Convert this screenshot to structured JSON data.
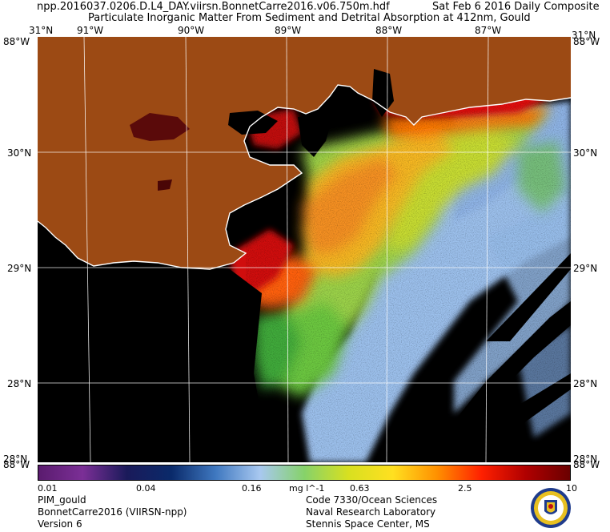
{
  "header": {
    "file_name": "npp.2016037.0206.D.L4_DAY.viirsn.BonnetCarre2016.v06.750m.hdf",
    "composite_label": "Sat Feb  6 2016 Daily Composite",
    "product_title": "Particulate Inorganic Matter From Sediment and Detrital Absorption at 412nm, Gould"
  },
  "map": {
    "top_latitude_left": "31°N",
    "top_latitude_right": "31°N",
    "bottom_latitude_left": "28°N",
    "bottom_latitude_right": "28°N",
    "corner_top_left": "88°W",
    "corner_top_right": "88°W",
    "corner_bottom_left": "88°W",
    "corner_bottom_right": "88°W",
    "longitude_labels": [
      "91°W",
      "90°W",
      "89°W",
      "88°W",
      "87°W"
    ],
    "latitude_labels": [
      "30°N",
      "29°N",
      "28°N"
    ],
    "colors": {
      "land": "#9c4a14",
      "no_data": "#000000",
      "coastline": "#ffffff",
      "graticule": "#ffffff"
    }
  },
  "colorbar": {
    "tick_labels": [
      "0.01",
      "0.04",
      "0.16",
      "0.63",
      "2.5",
      "10"
    ],
    "unit": "mg l^-1",
    "scale": "log",
    "range": [
      0.01,
      10
    ],
    "colors": [
      "#5a1b6e",
      "#7b2f96",
      "#1a1a5a",
      "#0a2a6a",
      "#3f78c0",
      "#a8c8f0",
      "#86d26a",
      "#d8e020",
      "#ffe020",
      "#ff9000",
      "#ff2000",
      "#b00000",
      "#6a0000"
    ]
  },
  "footer": {
    "left_lines": [
      "PIM_gould",
      "BonnetCarre2016 (VIIRSN-npp)",
      "Version 6"
    ],
    "right_lines": [
      "Code 7330/Ocean Sciences",
      "Naval Research Laboratory",
      "Stennis Space Center, MS"
    ],
    "seal_icon": "nrl-seal-icon"
  }
}
